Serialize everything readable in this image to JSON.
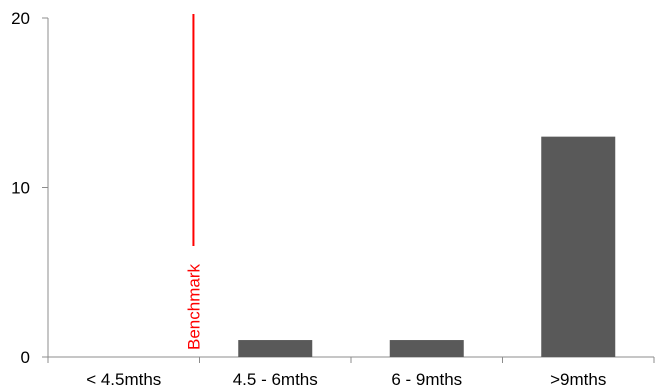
{
  "chart_data": {
    "type": "bar",
    "title": "",
    "xlabel": "",
    "ylabel": "",
    "categories": [
      "< 4.5mths",
      "4.5 - 6mths",
      "6 - 9mths",
      ">9mths"
    ],
    "values": [
      0,
      1,
      1,
      13
    ],
    "ylim": [
      0,
      20
    ],
    "yticks": [
      0,
      10,
      20
    ],
    "grid": false,
    "legend": "none",
    "bar_color": "#595959",
    "benchmark": {
      "label": "Benchmark",
      "x": 0.96,
      "color": "#ff0000"
    }
  }
}
